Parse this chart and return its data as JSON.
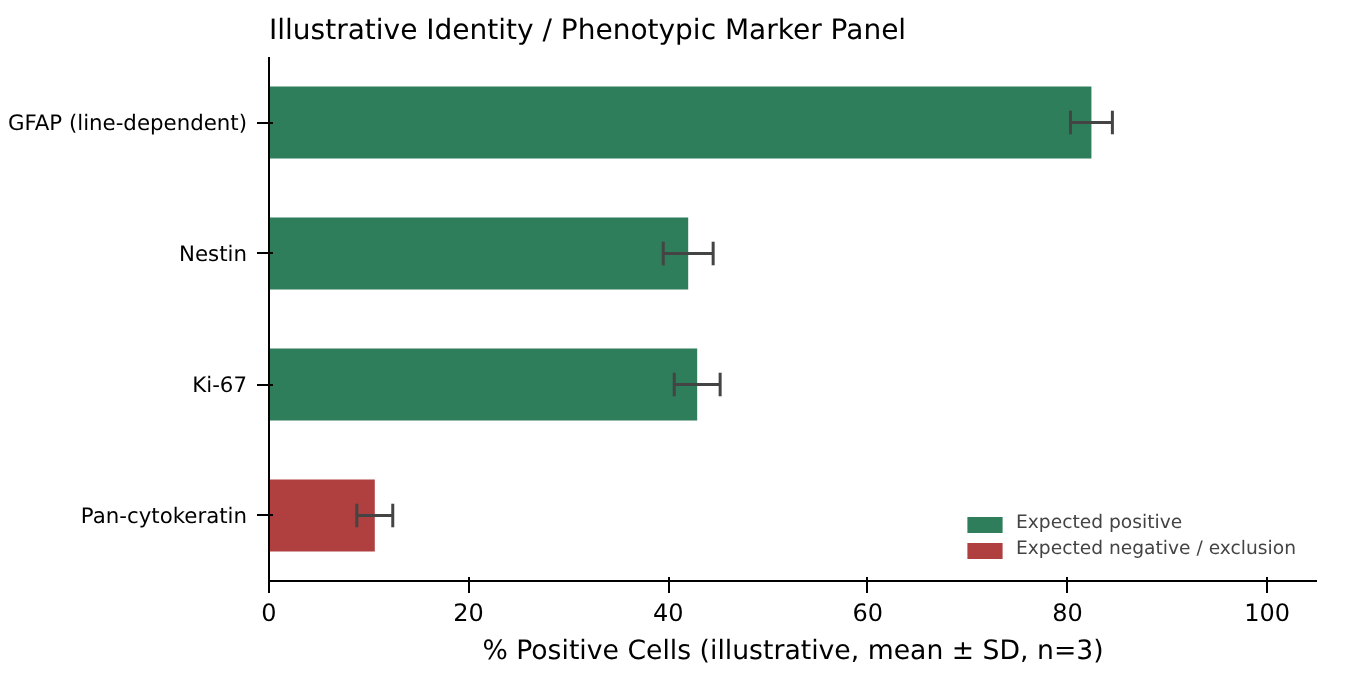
{
  "chart_data": {
    "type": "bar",
    "orientation": "horizontal",
    "title": "Illustrative Identity / Phenotypic Marker Panel",
    "xlabel": "% Positive Cells (illustrative, mean ± SD, n=3)",
    "categories": [
      "GFAP (line-dependent)",
      "Nestin",
      "Ki-67",
      "Pan-cytokeratin"
    ],
    "series": [
      {
        "name": "Expected positive",
        "color": "#2e7d5b",
        "values": [
          82.4,
          42.0,
          42.9,
          null
        ],
        "errors": [
          2.1,
          2.5,
          2.3,
          null
        ]
      },
      {
        "name": "Expected negative / exclusion",
        "color": "#b04040",
        "values": [
          null,
          null,
          null,
          10.6
        ],
        "errors": [
          null,
          null,
          null,
          1.8
        ]
      }
    ],
    "xlim": [
      0,
      105
    ],
    "xticks": [
      0,
      20,
      40,
      60,
      80,
      100
    ],
    "grid": false,
    "legend": "bottom right"
  }
}
